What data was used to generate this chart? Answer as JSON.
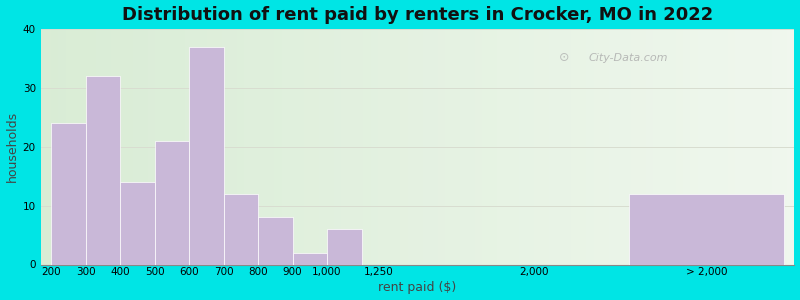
{
  "title": "Distribution of rent paid by renters in Crocker, MO in 2022",
  "xlabel": "rent paid ($)",
  "ylabel": "households",
  "bar_color": "#c9b8d8",
  "background_outer": "#00e5e5",
  "ylim": [
    0,
    40
  ],
  "yticks": [
    0,
    10,
    20,
    30,
    40
  ],
  "left_bars": [
    {
      "label": "200",
      "value": 24
    },
    {
      "label": "300",
      "value": 32
    },
    {
      "label": "400",
      "value": 14
    },
    {
      "label": "500",
      "value": 21
    },
    {
      "label": "600",
      "value": 37
    },
    {
      "label": "700",
      "value": 12
    },
    {
      "label": "800",
      "value": 8
    },
    {
      "label": "900",
      "value": 2
    },
    {
      "label": "1,000",
      "value": 6
    },
    {
      "label": "1,250",
      "value": 0
    }
  ],
  "mid_label": "2,000",
  "right_bar": {
    "label": "> 2,000",
    "value": 12
  },
  "title_fontsize": 13,
  "axis_label_fontsize": 9,
  "tick_fontsize": 7.5
}
